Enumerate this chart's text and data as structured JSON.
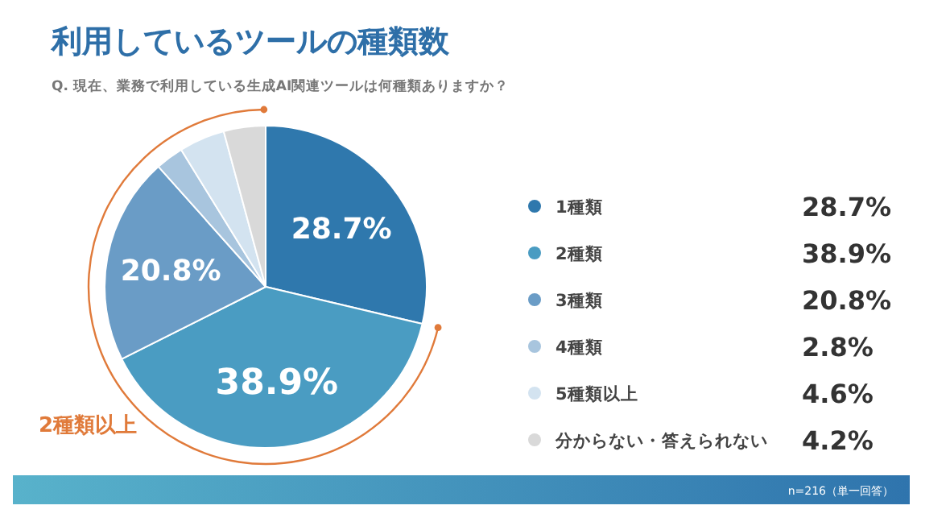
{
  "chart_data": {
    "type": "pie",
    "title": "利用しているツールの種類数",
    "subtitle": "Q. 現在、業務で利用している生成AI関連ツールは何種類ありますか？",
    "categories": [
      "1種類",
      "2種類",
      "3種類",
      "4種類",
      "5種類以上",
      "分からない・答えられない"
    ],
    "values": [
      28.7,
      38.9,
      20.8,
      2.8,
      4.6,
      4.2
    ],
    "colors": [
      "#2f78ad",
      "#4a9cc2",
      "#6a9cc6",
      "#a8c5de",
      "#d3e3f0",
      "#d9d9d9"
    ],
    "value_labels": [
      "28.7%",
      "38.9%",
      "20.8%",
      "2.8%",
      "4.6%",
      "4.2%"
    ],
    "legend": "right",
    "annotations": [
      "2種類以上",
      "n=216（単一回答）"
    ]
  }
}
